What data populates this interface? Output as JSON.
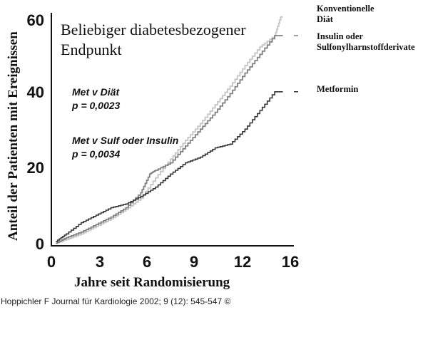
{
  "chart_data": {
    "type": "line",
    "subtype": "kaplan-meier-cumulative-incidence",
    "title": "Beliebiger diabetesbezogener Endpunkt",
    "title_lines": [
      "Beliebiger diabetesbezogener",
      "Endpunkt"
    ],
    "xlabel": "Jahre seit Randomisierung",
    "ylabel": "Anteil der Patienten mit Ereignissen",
    "x_ticks": [
      "0",
      "3",
      "6",
      "9",
      "12",
      "16"
    ],
    "y_ticks": [
      "0",
      "20",
      "40",
      "60"
    ],
    "xlim": [
      0,
      16
    ],
    "ylim": [
      0,
      60
    ],
    "grid": false,
    "legend_position": "right",
    "annotations": [
      {
        "line1": "Met v Diät",
        "line2": "p = 0,0023"
      },
      {
        "line1": "Met v Sulf oder Insulin",
        "line2": "p = 0,0034"
      }
    ],
    "series": [
      {
        "name": "Konventionelle Diät",
        "color": "#c8c8c8",
        "x": [
          0.3,
          1,
          2,
          3,
          4,
          5,
          6,
          7,
          8,
          9,
          10,
          11,
          12,
          13,
          14,
          15,
          15.4
        ],
        "values": [
          0.5,
          1.5,
          3,
          5,
          7,
          9.5,
          12.5,
          18,
          23,
          28,
          32.5,
          37.5,
          42.5,
          48,
          53,
          56,
          61
        ]
      },
      {
        "name": "Insulin oder Sulfonylharnstoffderivate",
        "color": "#808080",
        "x": [
          0.3,
          1,
          2,
          3,
          4,
          5,
          6,
          6.6,
          7,
          8,
          9,
          10,
          11,
          12,
          13,
          14,
          15,
          15.4
        ],
        "values": [
          0.5,
          2,
          3.5,
          5.5,
          7.5,
          10,
          14,
          19,
          20,
          22,
          26.5,
          31,
          35.5,
          40.5,
          46,
          51,
          56,
          56
        ]
      },
      {
        "name": "Metformin",
        "color": "#333333",
        "x": [
          0.3,
          1,
          2,
          3,
          4,
          5,
          6,
          7,
          8,
          9,
          10,
          11,
          12,
          13,
          14,
          15,
          15.4
        ],
        "values": [
          1,
          3,
          6,
          8,
          10,
          11,
          13,
          15.5,
          19,
          22,
          23.5,
          26,
          27,
          31,
          36,
          41,
          41
        ]
      }
    ]
  },
  "legend": {
    "items": [
      {
        "line1": "Konventionelle",
        "line2": "Diät"
      },
      {
        "line1": "Insulin oder",
        "line2": "Sulfonylharnstoffderivate"
      },
      {
        "line1": "Metformin",
        "line2": ""
      }
    ]
  },
  "footer": {
    "citation": "Hoppichler F Journal für Kardiologie 2002; 9 (12): 545-547 ©"
  }
}
